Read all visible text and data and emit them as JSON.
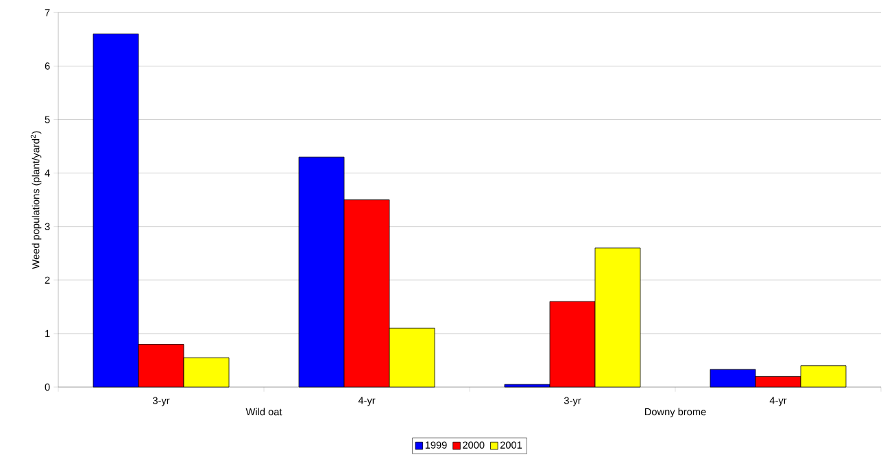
{
  "chart_data": {
    "type": "bar",
    "ylabel": "Weed populations (plant/yard$^{2}$)",
    "categories": [
      "3-yr",
      "4-yr",
      "3-yr",
      "4-yr"
    ],
    "annotations": [
      "Wild oat",
      "Downy brome"
    ],
    "series": [
      {
        "name": "1999",
        "color": "#0000ff",
        "values": [
          6.6,
          4.3,
          0.05,
          0.33
        ]
      },
      {
        "name": "2000",
        "color": "#ff0000",
        "values": [
          0.8,
          3.5,
          1.6,
          0.2
        ]
      },
      {
        "name": "2001",
        "color": "#ffff00",
        "values": [
          0.55,
          1.1,
          2.6,
          0.4
        ]
      }
    ],
    "ylim": [
      0,
      7
    ],
    "yticks": [
      0,
      1,
      2,
      3,
      4,
      5,
      6,
      7
    ],
    "grid": "y",
    "legend": "bottom"
  }
}
